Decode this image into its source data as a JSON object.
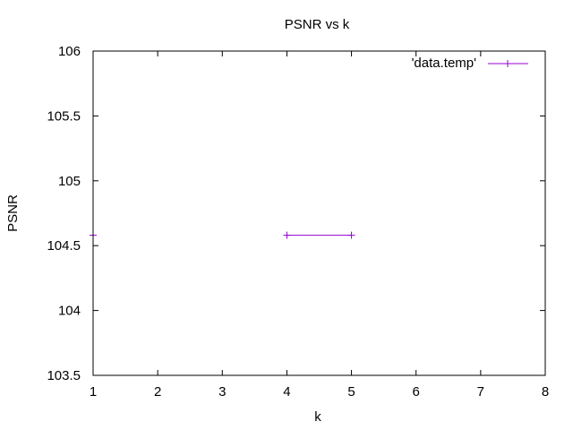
{
  "chart_data": {
    "type": "line",
    "title": "PSNR vs k",
    "xlabel": "k",
    "ylabel": "PSNR",
    "xlim": [
      1,
      8
    ],
    "ylim": [
      103.5,
      106
    ],
    "x_ticks": [
      "1",
      "2",
      "3",
      "4",
      "5",
      "6",
      "7",
      "8"
    ],
    "y_ticks": [
      "103.5",
      "104",
      "104.5",
      "105",
      "105.5",
      "106"
    ],
    "grid": false,
    "legend_position": "top-right",
    "series": [
      {
        "name": "'data.temp'",
        "color": "#9400d3",
        "marker": "plus",
        "segments": [
          [
            {
              "x": 0.9,
              "y": 104.58
            },
            {
              "x": 1,
              "y": 104.58
            }
          ],
          [
            {
              "x": 4,
              "y": 104.58
            },
            {
              "x": 5,
              "y": 104.58
            }
          ]
        ]
      }
    ]
  }
}
